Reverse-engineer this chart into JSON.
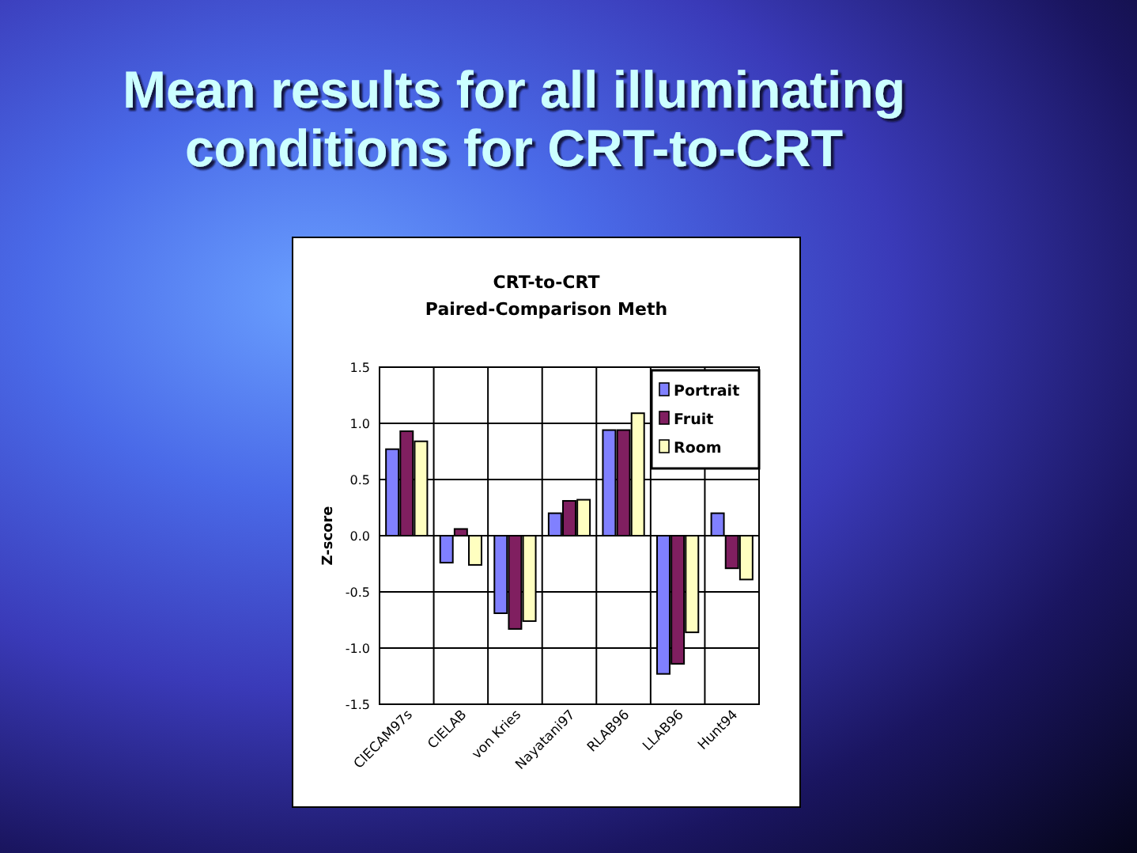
{
  "chart_data": {
    "type": "bar",
    "title": "Mean results for all illuminating\nconditions for CRT-to-CRT",
    "subtitle": "CRT-to-CRT\nPaired-Comparison Meth",
    "ylabel": "Z-score",
    "categories": [
      "CIECAM97s",
      "CIELAB",
      "von Kries",
      "Nayatani97",
      "RLAB96",
      "LLAB96",
      "Hunt94"
    ],
    "series": [
      {
        "name": "Portrait",
        "color": "#8080ff",
        "values": [
          0.77,
          -0.24,
          -0.69,
          0.2,
          0.94,
          -1.23,
          0.2
        ]
      },
      {
        "name": "Fruit",
        "color": "#801f60",
        "values": [
          0.93,
          0.06,
          -0.83,
          0.31,
          0.94,
          -1.14,
          -0.29
        ]
      },
      {
        "name": "Room",
        "color": "#ffffc0",
        "values": [
          0.84,
          -0.26,
          -0.76,
          0.32,
          1.09,
          -0.86,
          -0.39
        ]
      }
    ],
    "ylim": [
      -1.5,
      1.5
    ],
    "yticks": [
      {
        "value": -1.5,
        "label": "-1.5"
      },
      {
        "value": -1,
        "label": "-1.0"
      },
      {
        "value": -0.5,
        "label": "-0.5"
      },
      {
        "value": 0,
        "label": "0.0"
      },
      {
        "value": 0.5,
        "label": "0.5"
      },
      {
        "value": 1,
        "label": "1.0"
      },
      1.5
    ],
    "grid": true,
    "legend": "top right"
  }
}
